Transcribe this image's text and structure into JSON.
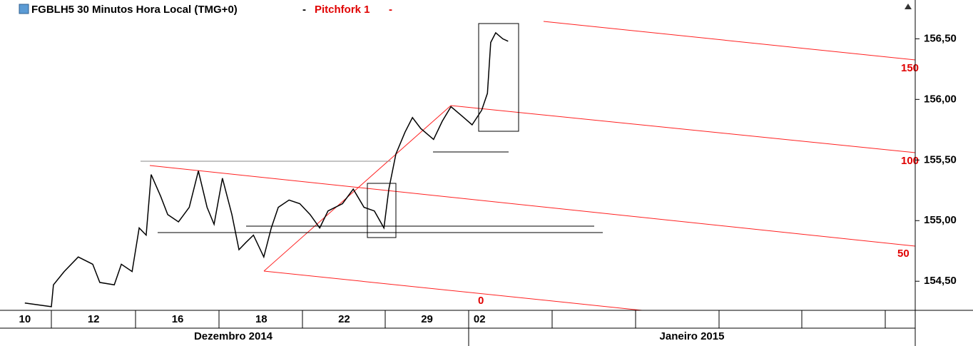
{
  "chart_data": {
    "type": "line",
    "title": "FGBLH5 30 Minutos Hora Local (TMG+0)",
    "study": "Pitchfork 1",
    "pitchfork_labels": [
      "150",
      "100",
      "50",
      "0"
    ],
    "months": [
      "Dezembro 2014",
      "Janeiro 2015"
    ],
    "xlim": [
      -0.6,
      21.5
    ],
    "xticks": [
      {
        "value": 0.0,
        "label": "10"
      },
      {
        "value": 1.66,
        "label": "12"
      },
      {
        "value": 3.69,
        "label": "16"
      },
      {
        "value": 5.71,
        "label": "18"
      },
      {
        "value": 7.71,
        "label": "22"
      },
      {
        "value": 9.71,
        "label": "29"
      },
      {
        "value": 10.98,
        "label": "02"
      }
    ],
    "ylim": [
      154.26,
      156.82
    ],
    "yticks": [
      {
        "value": 154.5,
        "label": "154,50"
      },
      {
        "value": 155.0,
        "label": "155,00"
      },
      {
        "value": 155.5,
        "label": "155,50"
      },
      {
        "value": 156.0,
        "label": "156,00"
      },
      {
        "value": 156.5,
        "label": "156,50"
      }
    ],
    "series": [
      {
        "name": "FGBLH5",
        "color": "#000000",
        "x": [
          0.0,
          0.64,
          0.69,
          0.95,
          1.29,
          1.64,
          1.81,
          2.16,
          2.33,
          2.59,
          2.76,
          2.93,
          3.05,
          3.28,
          3.45,
          3.71,
          3.97,
          4.19,
          4.4,
          4.57,
          4.77,
          5.0,
          5.17,
          5.34,
          5.52,
          5.77,
          5.95,
          6.12,
          6.38,
          6.64,
          6.89,
          7.12,
          7.32,
          7.67,
          7.93,
          8.19,
          8.44,
          8.67,
          8.79,
          8.96,
          9.18,
          9.36,
          9.56,
          9.87,
          10.08,
          10.29,
          10.6,
          10.8,
          11.03,
          11.17,
          11.25,
          11.37,
          11.54,
          11.67
        ],
        "values": [
          154.32,
          154.29,
          154.47,
          154.58,
          154.7,
          154.64,
          154.49,
          154.47,
          154.64,
          154.58,
          154.94,
          154.88,
          155.38,
          155.2,
          155.05,
          154.99,
          155.11,
          155.41,
          155.11,
          154.97,
          155.35,
          155.05,
          154.76,
          154.82,
          154.88,
          154.7,
          154.94,
          155.11,
          155.17,
          155.14,
          155.05,
          154.94,
          155.08,
          155.14,
          155.26,
          155.11,
          155.08,
          154.94,
          155.26,
          155.55,
          155.73,
          155.85,
          155.76,
          155.67,
          155.82,
          155.94,
          155.85,
          155.79,
          155.91,
          156.05,
          156.47,
          156.55,
          156.5,
          156.48
        ]
      }
    ]
  }
}
